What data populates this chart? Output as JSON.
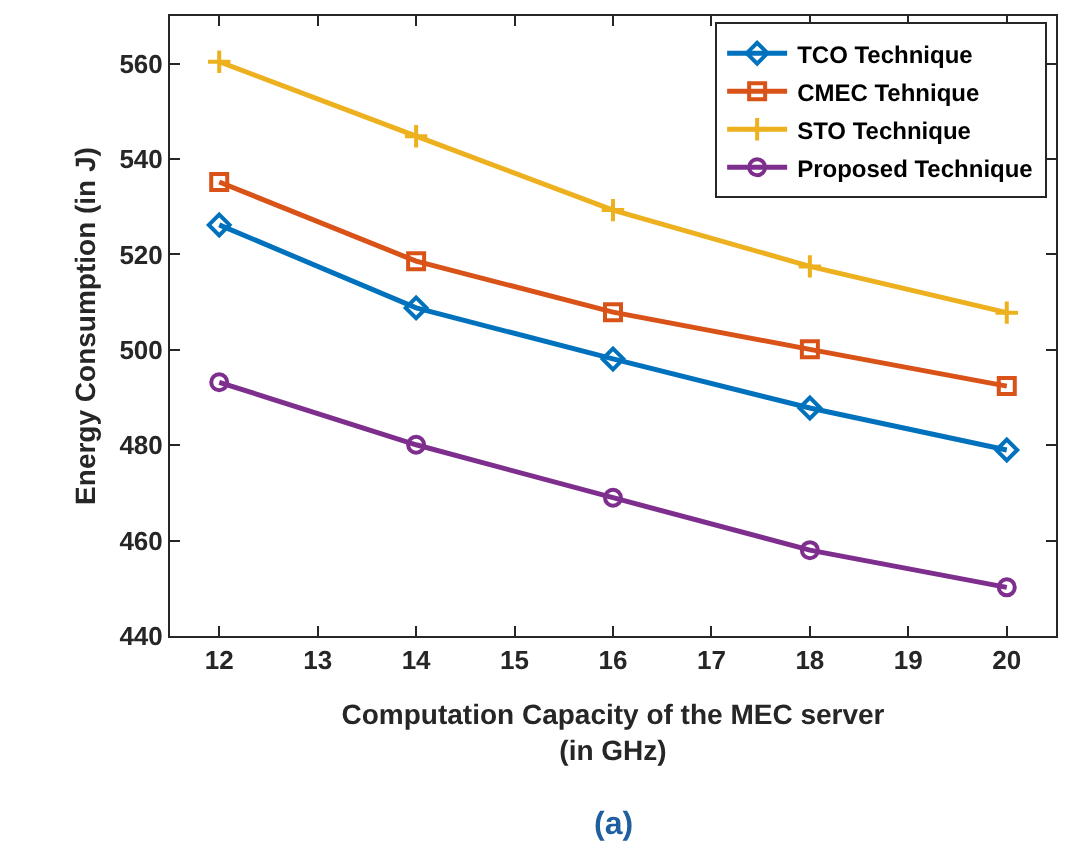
{
  "chart_data": {
    "type": "line",
    "xlabel": "Computation Capacity of the MEC server\n(in GHz)",
    "ylabel": "Energy Consumption (in J)",
    "annotations": [
      "(a)"
    ],
    "x": [
      12,
      14,
      16,
      18,
      20
    ],
    "series": [
      {
        "name": "TCO Technique",
        "color": "#0072bd",
        "marker": "diamond",
        "values": [
          526.2,
          508.8,
          498.1,
          487.8,
          479
        ]
      },
      {
        "name": "CMEC Tehnique",
        "color": "#d95319",
        "marker": "square",
        "values": [
          535.2,
          518.6,
          507.9,
          500.1,
          492.4
        ]
      },
      {
        "name": "STO Technique",
        "color": "#edb120",
        "marker": "cross",
        "values": [
          560.4,
          544.8,
          529.3,
          517.5,
          507.8
        ]
      },
      {
        "name": "Proposed Technique",
        "color": "#7e2f8e",
        "marker": "circle",
        "values": [
          493.2,
          480.1,
          469,
          458,
          450.2
        ]
      }
    ],
    "xlim": [
      11.5,
      20.5
    ],
    "xticks": [
      12,
      13,
      14,
      15,
      16,
      17,
      18,
      19,
      20
    ],
    "ylim": [
      440,
      570
    ],
    "yticks": [
      440,
      460,
      480,
      500,
      520,
      540,
      560
    ],
    "legend": "top right",
    "line_style": "solid"
  }
}
